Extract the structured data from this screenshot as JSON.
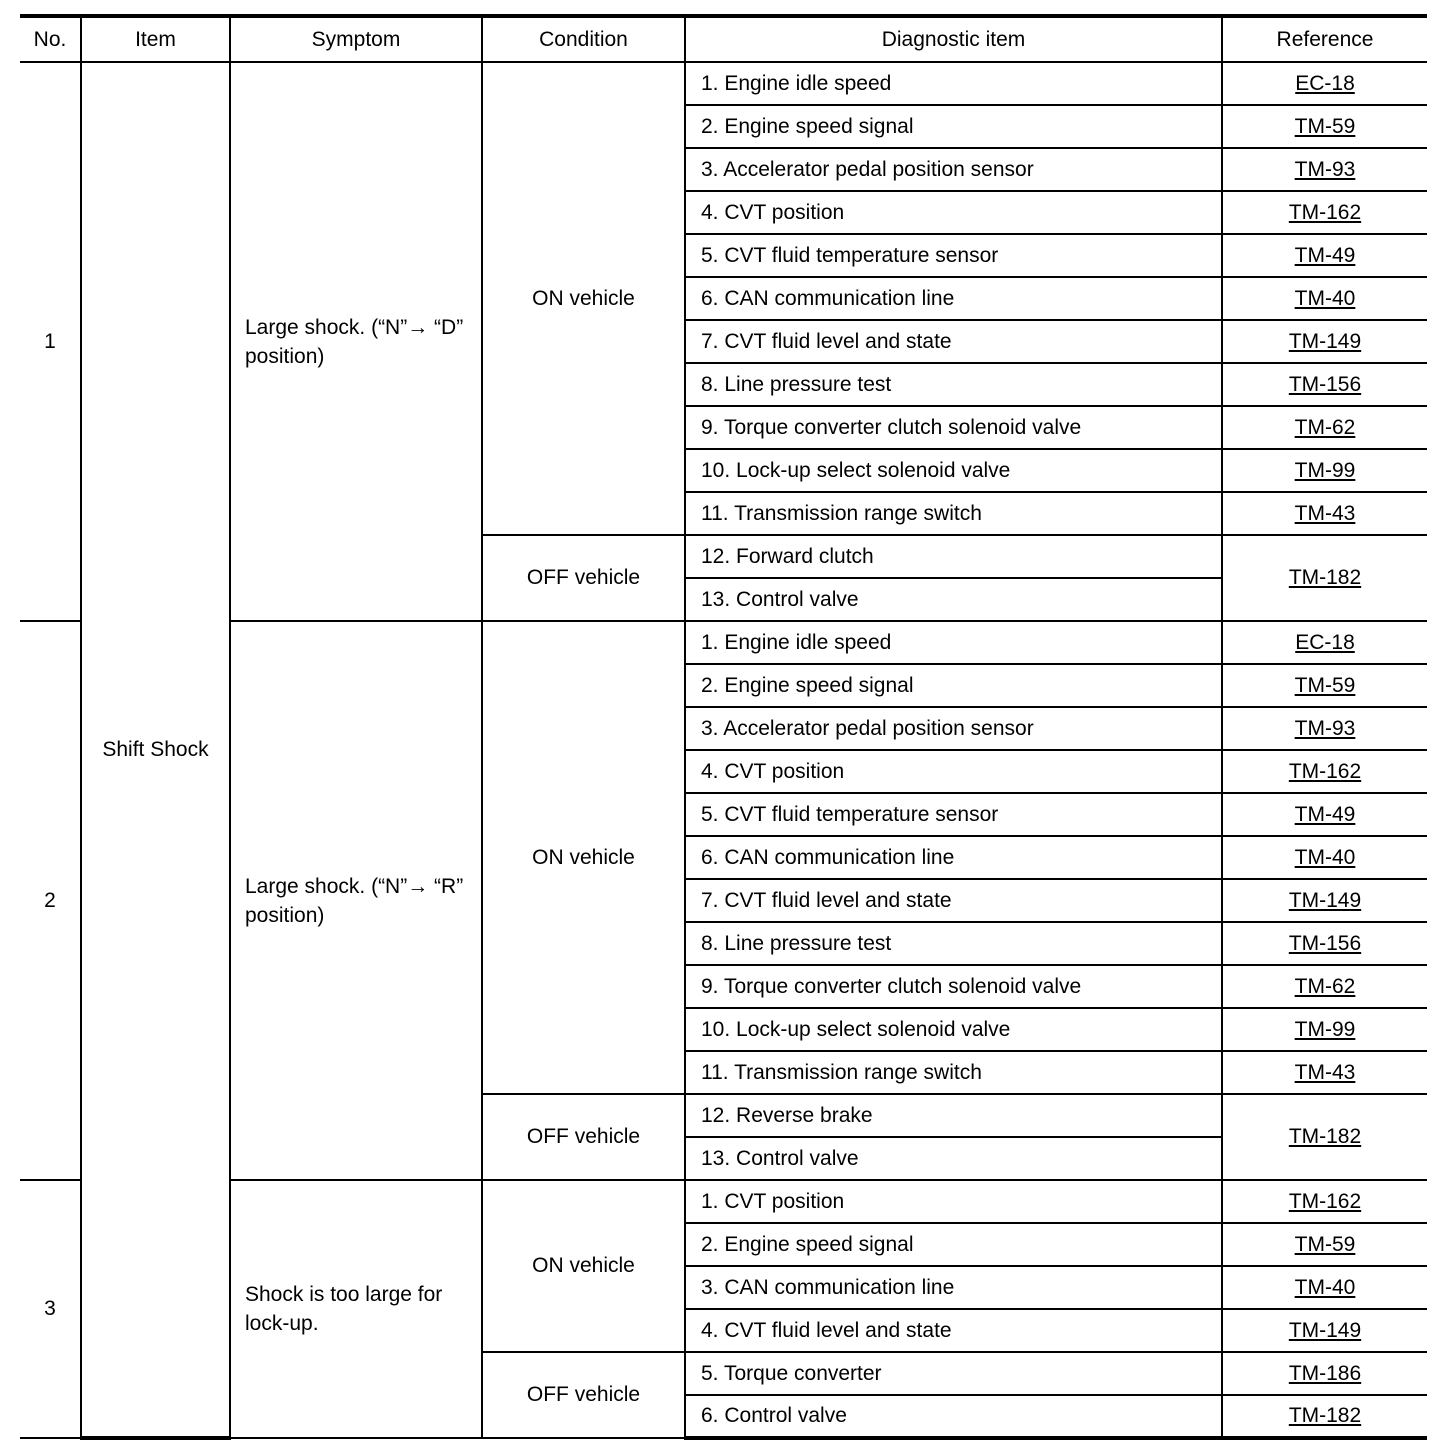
{
  "headers": [
    "No.",
    "Item",
    "Symptom",
    "Condition",
    "Diagnostic item",
    "Reference"
  ],
  "item": "Shift Shock",
  "groups": [
    {
      "no": "1",
      "symptom": "Large shock. (“N”→ “D” position)",
      "conditions": [
        {
          "label": "ON vehicle",
          "items": [
            {
              "text": "1. Engine idle speed",
              "ref": "EC-18"
            },
            {
              "text": "2. Engine speed signal",
              "ref": "TM-59"
            },
            {
              "text": "3. Accelerator pedal position sensor",
              "ref": "TM-93"
            },
            {
              "text": "4. CVT position",
              "ref": "TM-162"
            },
            {
              "text": "5. CVT fluid temperature sensor",
              "ref": "TM-49"
            },
            {
              "text": "6. CAN communication line",
              "ref": "TM-40"
            },
            {
              "text": "7. CVT fluid level and state",
              "ref": "TM-149"
            },
            {
              "text": "8. Line pressure test",
              "ref": "TM-156"
            },
            {
              "text": "9. Torque converter clutch solenoid valve",
              "ref": "TM-62"
            },
            {
              "text": "10. Lock-up select solenoid valve",
              "ref": "TM-99"
            },
            {
              "text": "11. Transmission range switch",
              "ref": "TM-43"
            }
          ]
        },
        {
          "label": "OFF vehicle",
          "shared_ref": "TM-182",
          "items": [
            {
              "text": "12. Forward clutch"
            },
            {
              "text": "13. Control valve"
            }
          ]
        }
      ]
    },
    {
      "no": "2",
      "symptom": "Large shock. (“N”→ “R” position)",
      "conditions": [
        {
          "label": "ON vehicle",
          "items": [
            {
              "text": "1. Engine idle speed",
              "ref": "EC-18"
            },
            {
              "text": "2. Engine speed signal",
              "ref": "TM-59"
            },
            {
              "text": "3. Accelerator pedal position sensor",
              "ref": "TM-93"
            },
            {
              "text": "4. CVT position",
              "ref": "TM-162"
            },
            {
              "text": "5. CVT fluid temperature sensor",
              "ref": "TM-49"
            },
            {
              "text": "6. CAN communication line",
              "ref": "TM-40"
            },
            {
              "text": "7. CVT fluid level and state",
              "ref": "TM-149"
            },
            {
              "text": "8. Line pressure test",
              "ref": "TM-156"
            },
            {
              "text": "9. Torque converter clutch solenoid valve",
              "ref": "TM-62"
            },
            {
              "text": "10. Lock-up select solenoid valve",
              "ref": "TM-99"
            },
            {
              "text": "11. Transmission range switch",
              "ref": "TM-43"
            }
          ]
        },
        {
          "label": "OFF vehicle",
          "shared_ref": "TM-182",
          "items": [
            {
              "text": "12. Reverse brake"
            },
            {
              "text": "13. Control valve"
            }
          ]
        }
      ]
    },
    {
      "no": "3",
      "symptom": "Shock is too large for lock-up.",
      "conditions": [
        {
          "label": "ON vehicle",
          "items": [
            {
              "text": "1. CVT position",
              "ref": "TM-162"
            },
            {
              "text": "2. Engine speed signal",
              "ref": "TM-59"
            },
            {
              "text": "3. CAN communication line",
              "ref": "TM-40"
            },
            {
              "text": "4. CVT fluid level and state",
              "ref": "TM-149"
            }
          ]
        },
        {
          "label": "OFF vehicle",
          "items": [
            {
              "text": "5. Torque converter",
              "ref": "TM-186"
            },
            {
              "text": "6. Control valve",
              "ref": "TM-182"
            }
          ]
        }
      ]
    }
  ]
}
